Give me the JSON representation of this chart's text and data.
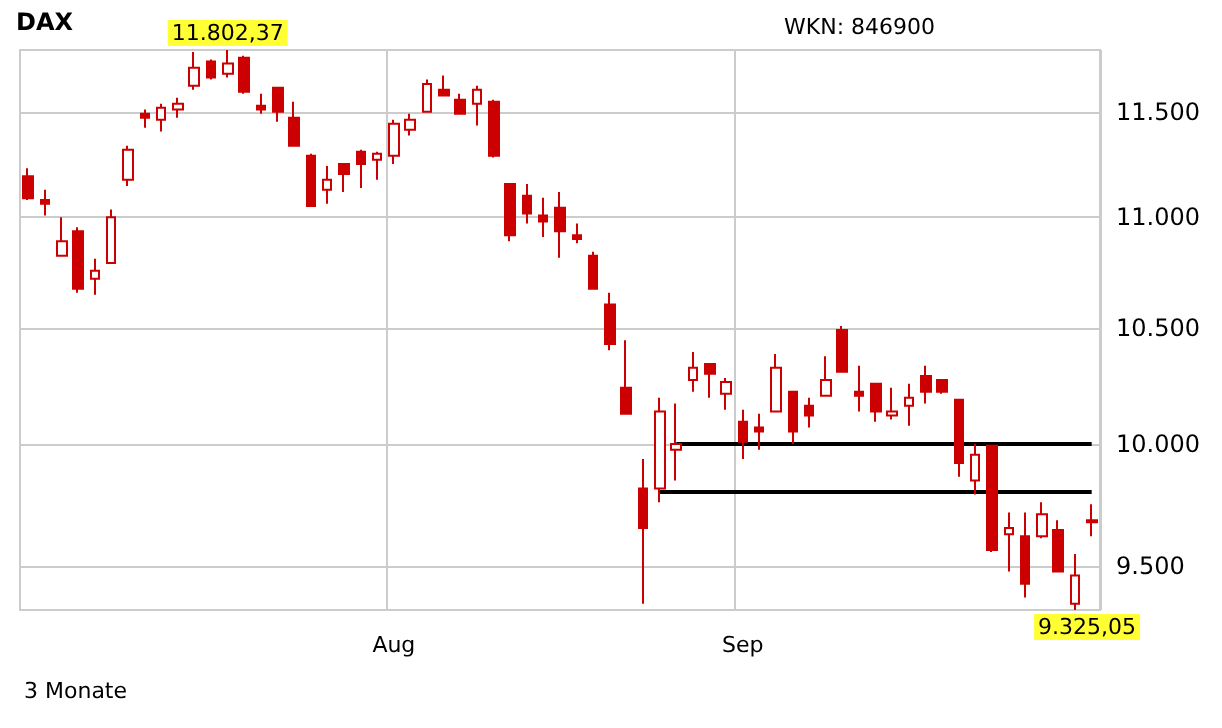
{
  "chart_data": {
    "type": "candlestick",
    "title": "DAX",
    "annotations": [
      "WKN: 846900",
      "3 Monate",
      "11.802,37",
      "9.325,05"
    ],
    "categories": [
      null,
      null,
      null,
      null,
      null,
      null,
      null,
      null,
      null,
      null,
      null,
      null,
      null,
      null,
      null,
      null,
      null,
      null,
      null,
      null,
      null,
      null,
      "Aug",
      null,
      null,
      null,
      null,
      null,
      null,
      null,
      null,
      null,
      null,
      null,
      null,
      null,
      null,
      null,
      null,
      null,
      null,
      null,
      null,
      "Sep",
      null,
      null,
      null,
      null,
      null,
      null,
      null,
      null,
      null,
      null,
      null,
      null,
      null,
      null,
      null,
      null,
      null,
      null,
      null,
      null,
      null
    ],
    "ohlc": [
      [
        11192,
        11229,
        11081,
        11089
      ],
      [
        11081,
        11128,
        11009,
        11063
      ],
      [
        10824,
        11000,
        10824,
        10890
      ],
      [
        10936,
        10954,
        10657,
        10675
      ],
      [
        10720,
        10810,
        10648,
        10756
      ],
      [
        10791,
        11036,
        10791,
        11000
      ],
      [
        11175,
        11336,
        11146,
        11317
      ],
      [
        11490,
        11510,
        11423,
        11471
      ],
      [
        11461,
        11539,
        11404,
        11519
      ],
      [
        11510,
        11568,
        11471,
        11539
      ],
      [
        11626,
        11793,
        11607,
        11714
      ],
      [
        11745,
        11755,
        11657,
        11666
      ],
      [
        11685,
        11802.37,
        11666,
        11735
      ],
      [
        11764,
        11774,
        11587,
        11597
      ],
      [
        11529,
        11587,
        11490,
        11510
      ],
      [
        11616,
        11616,
        11452,
        11500
      ],
      [
        11471,
        11548,
        11336,
        11336
      ],
      [
        11289,
        11298,
        11053,
        11053
      ],
      [
        11128,
        11240,
        11063,
        11175
      ],
      [
        11250,
        11250,
        11118,
        11203
      ],
      [
        11308,
        11317,
        11137,
        11250
      ],
      [
        11270,
        11308,
        11175,
        11298
      ],
      [
        11289,
        11461,
        11250,
        11442
      ],
      [
        11413,
        11490,
        11385,
        11461
      ],
      [
        11500,
        11657,
        11500,
        11635
      ],
      [
        11607,
        11676,
        11578,
        11578
      ],
      [
        11558,
        11587,
        11490,
        11490
      ],
      [
        11539,
        11626,
        11433,
        11607
      ],
      [
        11548,
        11558,
        11280,
        11289
      ],
      [
        11156,
        11156,
        10890,
        10918
      ],
      [
        11100,
        11156,
        10972,
        11018
      ],
      [
        11009,
        11091,
        10909,
        10981
      ],
      [
        11044,
        11118,
        10815,
        10936
      ],
      [
        10918,
        10972,
        10881,
        10900
      ],
      [
        10824,
        10842,
        10675,
        10675
      ],
      [
        10604,
        10657,
        10402,
        10429
      ],
      [
        10239,
        10446,
        10128,
        10128
      ],
      [
        9814,
        9937,
        9350,
        9652
      ],
      [
        9814,
        10196,
        9757,
        10137
      ],
      [
        9975,
        10171,
        9847,
        10000
      ],
      [
        10273,
        10394,
        10222,
        10325
      ],
      [
        10342,
        10342,
        10196,
        10299
      ],
      [
        10213,
        10281,
        10145,
        10264
      ],
      [
        10094,
        10145,
        9937,
        10009
      ],
      [
        10069,
        10128,
        9975,
        10052
      ],
      [
        10137,
        10385,
        10137,
        10325
      ],
      [
        10222,
        10222,
        10000,
        10052
      ],
      [
        10162,
        10196,
        10069,
        10120
      ],
      [
        10205,
        10376,
        10205,
        10273
      ],
      [
        10491,
        10509,
        10308,
        10308
      ],
      [
        10222,
        10334,
        10137,
        10205
      ],
      [
        10256,
        10256,
        10094,
        10137
      ],
      [
        10120,
        10239,
        10103,
        10137
      ],
      [
        10162,
        10256,
        10077,
        10196
      ],
      [
        10290,
        10334,
        10171,
        10222
      ],
      [
        10273,
        10273,
        10213,
        10222
      ],
      [
        10188,
        10188,
        9863,
        9920
      ],
      [
        9847,
        10000,
        9789,
        9954
      ],
      [
        9992,
        9992,
        9555,
        9563
      ],
      [
        9627,
        9716,
        9477,
        9652
      ],
      [
        9619,
        9716,
        9374,
        9429
      ],
      [
        9619,
        9757,
        9611,
        9708
      ],
      [
        9644,
        9684,
        9477,
        9477
      ],
      [
        9350,
        9547,
        9325.05,
        9461
      ],
      [
        9684,
        9749,
        9619,
        9676
      ]
    ],
    "color": "#cc0000",
    "series": [
      {
        "type": "line",
        "color": "#000000",
        "values": [
          null,
          null,
          null,
          null,
          null,
          null,
          null,
          null,
          null,
          null,
          null,
          null,
          null,
          null,
          null,
          null,
          null,
          null,
          null,
          null,
          null,
          null,
          null,
          null,
          null,
          null,
          null,
          null,
          null,
          null,
          null,
          null,
          null,
          null,
          null,
          null,
          null,
          null,
          null,
          10000,
          10000,
          10000,
          10000,
          10000,
          10000,
          10000,
          10000,
          10000,
          10000,
          10000,
          10000,
          10000,
          10000,
          10000,
          10000,
          10000,
          10000,
          10000,
          10000,
          10000,
          10000,
          10000,
          10000,
          10000,
          10000
        ]
      },
      {
        "type": "line",
        "color": "#000000",
        "values": [
          null,
          null,
          null,
          null,
          null,
          null,
          null,
          null,
          null,
          null,
          null,
          null,
          null,
          null,
          null,
          null,
          null,
          null,
          null,
          null,
          null,
          null,
          null,
          null,
          null,
          null,
          null,
          null,
          null,
          null,
          null,
          null,
          null,
          null,
          null,
          null,
          null,
          null,
          9800,
          9800,
          9800,
          9800,
          9800,
          9800,
          9800,
          9800,
          9800,
          9800,
          9800,
          9800,
          9800,
          9800,
          9800,
          9800,
          9800,
          9800,
          9800,
          9800,
          9800,
          9800,
          9800,
          9800,
          9800,
          9800,
          9800
        ]
      }
    ],
    "ylim": [
      9325.05,
      11802.37
    ],
    "yticks": [
      {
        "value": 9500,
        "label": "9.500"
      },
      {
        "value": 10000,
        "label": "10.000"
      },
      {
        "value": 10500,
        "label": "10.500"
      },
      {
        "value": 11000,
        "label": "11.000"
      },
      {
        "value": 11500,
        "label": "11.500"
      }
    ],
    "log": "y",
    "grid": true
  }
}
